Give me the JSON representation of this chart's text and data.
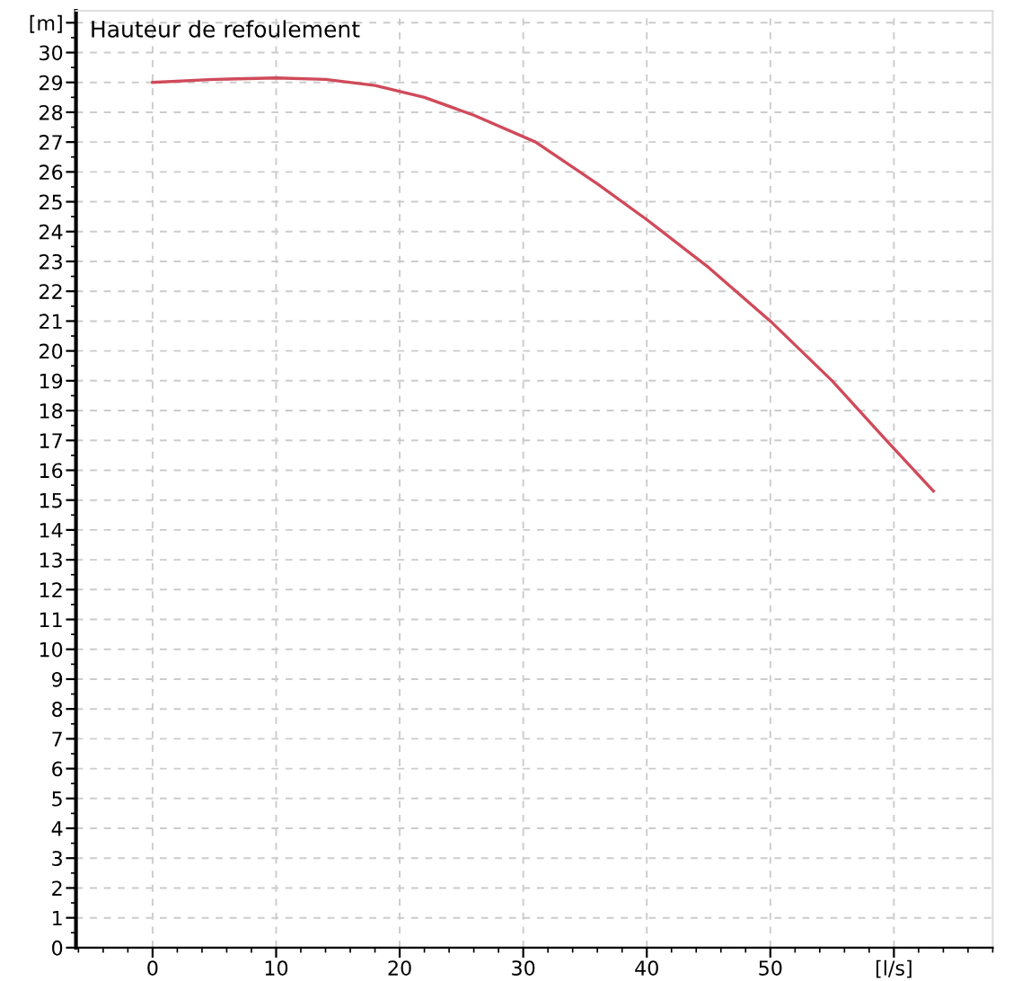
{
  "chart_data": {
    "type": "line",
    "title": "Hauteur de refoulement",
    "x": [
      0,
      5,
      10,
      14,
      18,
      22,
      26,
      31,
      36,
      40,
      45,
      50,
      55,
      59.4,
      63.2
    ],
    "series": [
      {
        "color": "#d04a5a",
        "values": [
          29.0,
          29.1,
          29.15,
          29.1,
          28.9,
          28.5,
          27.9,
          27.0,
          25.6,
          24.4,
          22.8,
          21.0,
          19.0,
          17.0,
          15.3
        ]
      }
    ],
    "xlim": [
      -6.2,
      68
    ],
    "ylim": [
      0,
      31.4
    ],
    "xticks": [
      0,
      10,
      20,
      30,
      40,
      50,
      {
        "value": 60,
        "label": "[l/s]"
      }
    ],
    "yticks": [
      0,
      1,
      2,
      3,
      4,
      5,
      6,
      7,
      8,
      9,
      10,
      11,
      12,
      13,
      14,
      15,
      16,
      17,
      18,
      19,
      20,
      21,
      22,
      23,
      24,
      25,
      26,
      27,
      28,
      29,
      30,
      {
        "value": 31,
        "label": "[m]"
      }
    ],
    "grid": true,
    "marker": "none",
    "line_style": "solid"
  }
}
